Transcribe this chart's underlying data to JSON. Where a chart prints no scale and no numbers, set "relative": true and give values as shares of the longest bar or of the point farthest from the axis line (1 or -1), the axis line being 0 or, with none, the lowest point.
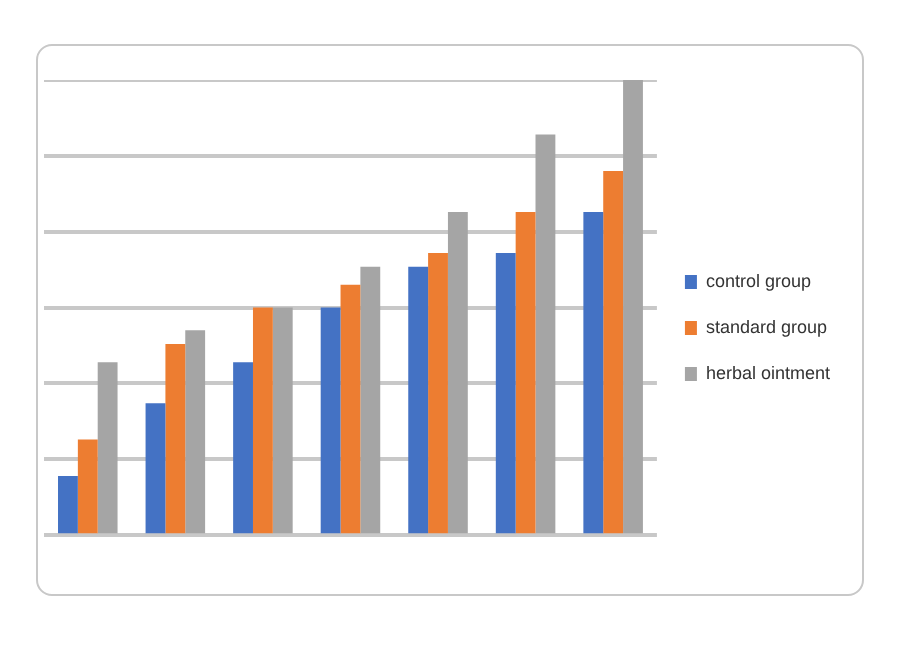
{
  "chart_data": {
    "type": "bar",
    "relative": true,
    "categories": [
      null,
      null,
      null,
      null,
      null,
      null,
      null
    ],
    "series": [
      {
        "name": "control group",
        "color": "#4472c4",
        "values": [
          0.13,
          0.29,
          0.38,
          0.5,
          0.59,
          0.62,
          0.71
        ]
      },
      {
        "name": "standard group",
        "color": "#ed7d31",
        "values": [
          0.21,
          0.42,
          0.5,
          0.55,
          0.62,
          0.71,
          0.8
        ]
      },
      {
        "name": "herbal ointment",
        "color": "#a5a5a5",
        "values": [
          0.38,
          0.45,
          0.5,
          0.59,
          0.71,
          0.88,
          1
        ]
      }
    ],
    "grid": "y",
    "legend": "right"
  }
}
